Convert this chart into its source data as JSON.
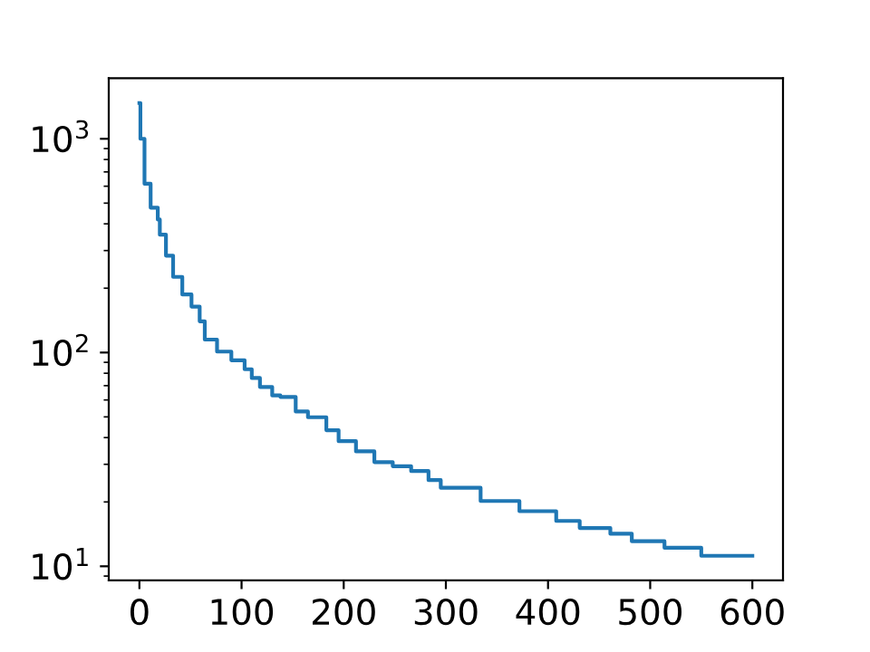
{
  "chart_data": {
    "type": "step",
    "log": "y",
    "xlim": [
      -30,
      630
    ],
    "ylim": [
      8.6,
      1920
    ],
    "xticks": [
      0,
      100,
      200,
      300,
      400,
      500,
      600
    ],
    "yticks": [
      {
        "value": 10,
        "label": "10$^{1}$"
      },
      {
        "value": 100,
        "label": "10$^{2}$"
      },
      {
        "value": 1000,
        "label": "10$^{3}$"
      }
    ],
    "grid": false,
    "legend": false,
    "series": [
      {
        "color": "#1f77b4",
        "x": [
          0,
          1,
          5,
          11,
          18,
          20,
          26,
          33,
          42,
          51,
          59,
          64,
          76,
          90,
          103,
          110,
          118,
          130,
          138,
          153,
          165,
          183,
          195,
          212,
          230,
          248,
          266,
          283,
          295,
          334,
          372,
          408,
          431,
          461,
          482,
          514,
          550,
          600
        ],
        "values": [
          1470,
          1000,
          616,
          476,
          419,
          356,
          284,
          226,
          187,
          164,
          140,
          115,
          101,
          92,
          83.5,
          76,
          69,
          63,
          62,
          53,
          49.8,
          43.3,
          38.5,
          34.5,
          30.7,
          29.4,
          27.9,
          25.3,
          23.3,
          20.2,
          18.1,
          16.3,
          15.1,
          14.2,
          13.1,
          12.2,
          11.2,
          11.2
        ]
      }
    ]
  }
}
